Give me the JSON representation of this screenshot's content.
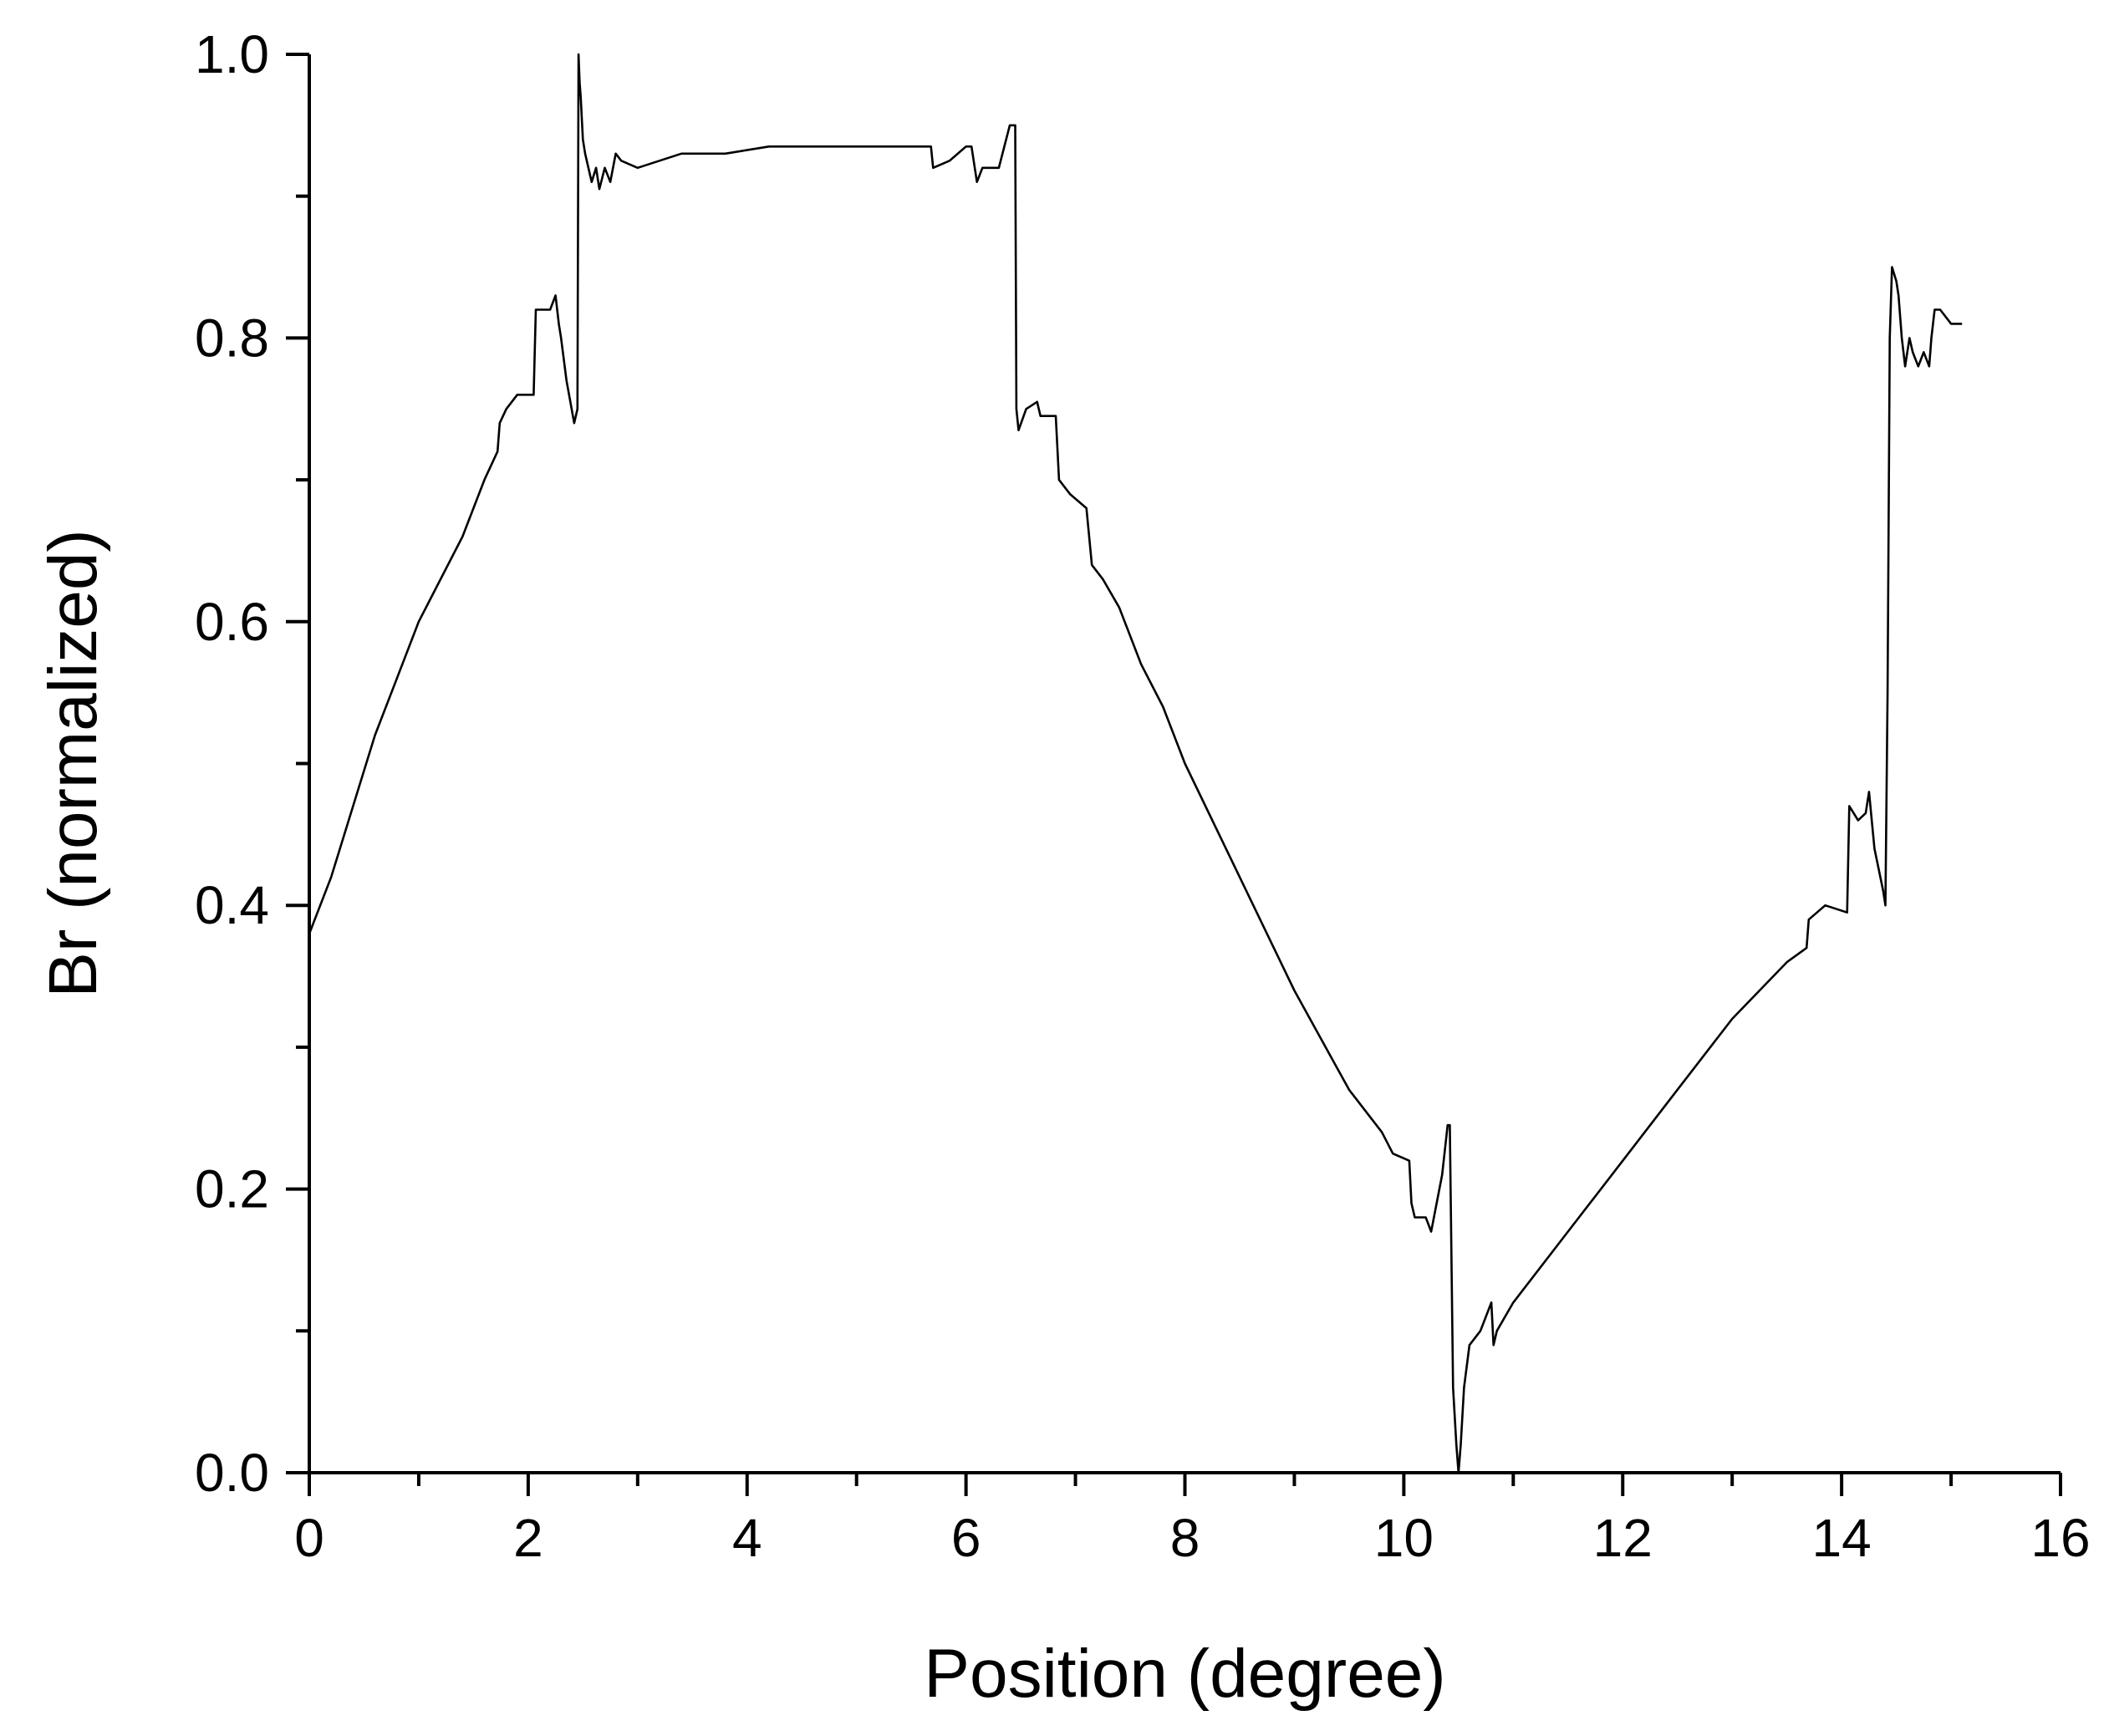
{
  "chart_data": {
    "type": "line",
    "title": "",
    "xlabel": "Position (degree)",
    "ylabel": "Br (normalized)",
    "xlim": [
      0,
      16
    ],
    "ylim": [
      0.0,
      1.0
    ],
    "xticks": [
      0,
      2,
      4,
      6,
      8,
      10,
      12,
      14,
      16
    ],
    "xtick_labels": [
      "0",
      "2",
      "4",
      "6",
      "8",
      "10",
      "12",
      "14",
      "16"
    ],
    "yticks": [
      0.0,
      0.2,
      0.4,
      0.6,
      0.8,
      1.0
    ],
    "ytick_labels": [
      "0.0",
      "0.2",
      "0.4",
      "0.6",
      "0.8",
      "1.0"
    ],
    "grid": false,
    "legend": "none",
    "line_color": "#000000",
    "series": [
      {
        "x": [
          0.0,
          0.2,
          0.4,
          0.6,
          0.8,
          1.0,
          1.2,
          1.4,
          1.6,
          1.72,
          1.74,
          1.8,
          1.9,
          2.0,
          2.05,
          2.07,
          2.12,
          2.2,
          2.25,
          2.28,
          2.3,
          2.35,
          2.42,
          2.45,
          2.46,
          2.47,
          2.48,
          2.5,
          2.52,
          2.55,
          2.58,
          2.62,
          2.65,
          2.7,
          2.75,
          2.8,
          2.85,
          3.0,
          3.2,
          3.4,
          3.8,
          4.2,
          4.6,
          5.0,
          5.4,
          5.6,
          5.68,
          5.7,
          5.85,
          6.0,
          6.05,
          6.08,
          6.1,
          6.15,
          6.3,
          6.4,
          6.45,
          6.46,
          6.48,
          6.55,
          6.65,
          6.68,
          6.8,
          6.82,
          6.85,
          6.95,
          7.1,
          7.15,
          7.25,
          7.4,
          7.6,
          7.8,
          8.0,
          8.5,
          9.0,
          9.5,
          9.8,
          9.9,
          10.05,
          10.07,
          10.1,
          10.2,
          10.25,
          10.35,
          10.4,
          10.42,
          10.45,
          10.48,
          10.5,
          10.52,
          10.55,
          10.6,
          10.7,
          10.8,
          10.82,
          10.85,
          11.0,
          11.5,
          12.0,
          12.5,
          13.0,
          13.5,
          13.68,
          13.7,
          13.85,
          14.05,
          14.07,
          14.15,
          14.22,
          14.25,
          14.3,
          14.38,
          14.4,
          14.42,
          14.44,
          14.46,
          14.5,
          14.52,
          14.55,
          14.58,
          14.62,
          14.65,
          14.7,
          14.75,
          14.8,
          14.82,
          14.85,
          14.9,
          15.0,
          15.1
        ],
        "y": [
          0.38,
          0.42,
          0.47,
          0.52,
          0.56,
          0.6,
          0.63,
          0.66,
          0.7,
          0.72,
          0.74,
          0.75,
          0.76,
          0.76,
          0.76,
          0.82,
          0.82,
          0.82,
          0.83,
          0.81,
          0.8,
          0.77,
          0.74,
          0.75,
          1.0,
          0.98,
          0.97,
          0.94,
          0.93,
          0.92,
          0.91,
          0.92,
          0.905,
          0.92,
          0.91,
          0.93,
          0.925,
          0.92,
          0.925,
          0.93,
          0.93,
          0.935,
          0.935,
          0.935,
          0.935,
          0.935,
          0.935,
          0.92,
          0.925,
          0.935,
          0.935,
          0.92,
          0.91,
          0.92,
          0.92,
          0.95,
          0.95,
          0.75,
          0.735,
          0.75,
          0.755,
          0.745,
          0.745,
          0.745,
          0.7,
          0.69,
          0.68,
          0.64,
          0.63,
          0.61,
          0.57,
          0.54,
          0.5,
          0.42,
          0.34,
          0.27,
          0.24,
          0.225,
          0.22,
          0.19,
          0.18,
          0.18,
          0.17,
          0.21,
          0.245,
          0.245,
          0.06,
          0.02,
          0.0,
          0.02,
          0.06,
          0.09,
          0.1,
          0.12,
          0.09,
          0.1,
          0.12,
          0.17,
          0.22,
          0.27,
          0.32,
          0.36,
          0.37,
          0.39,
          0.4,
          0.395,
          0.47,
          0.46,
          0.465,
          0.48,
          0.44,
          0.41,
          0.4,
          0.55,
          0.8,
          0.85,
          0.84,
          0.83,
          0.8,
          0.78,
          0.8,
          0.79,
          0.78,
          0.79,
          0.78,
          0.8,
          0.82,
          0.82,
          0.81,
          0.81
        ]
      }
    ]
  }
}
